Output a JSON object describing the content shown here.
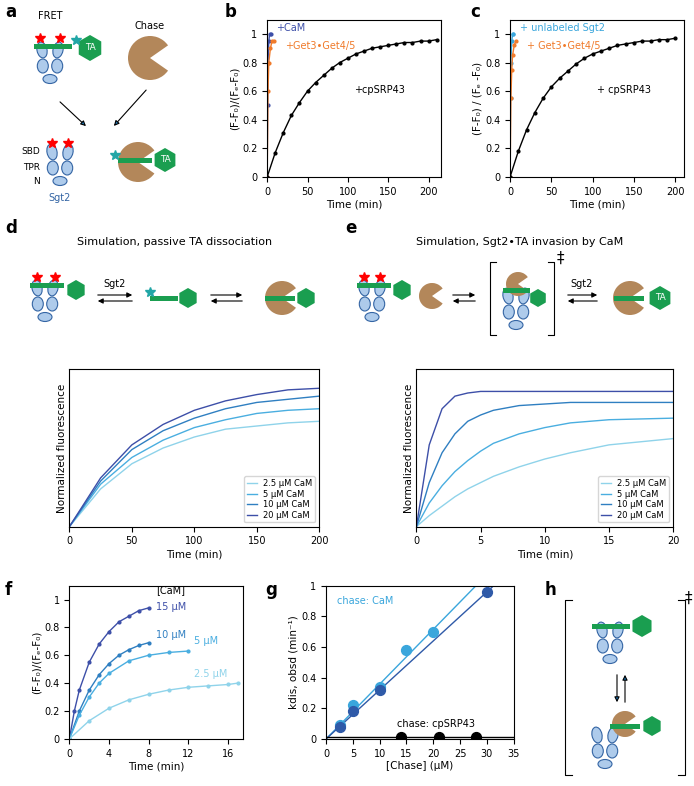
{
  "diagrams": {
    "a": {
      "label": "a",
      "fret": "FRET",
      "ta": "TA",
      "chase": "Chase",
      "sbd": "SBD",
      "tpr": "TPR",
      "n": "N",
      "sgt2": "Sgt2"
    },
    "d": {
      "label": "d",
      "sgt2": "Sgt2"
    },
    "e": {
      "label": "e",
      "sgt2": "Sgt2",
      "ta": "TA",
      "transition": "‡"
    },
    "h": {
      "label": "h",
      "transition": "‡"
    }
  },
  "chart_data": [
    {
      "panel": "b",
      "type": "line",
      "xlabel": "Time (min)",
      "ylabel": "(F-F₀)/(Fₑ-F₀)",
      "xlim": [
        0,
        215
      ],
      "xticks": [
        0,
        50,
        100,
        150,
        200
      ],
      "ylim": [
        0,
        1.1
      ],
      "yticks": [
        0,
        0.2,
        0.4,
        0.6,
        0.8,
        1
      ],
      "series": [
        {
          "name": "+CaM",
          "color": "#3d4fa8",
          "marker": "o",
          "x": [
            0,
            0.5,
            1,
            2,
            3,
            5
          ],
          "values": [
            0,
            0.5,
            0.8,
            0.95,
            1.0,
            1.0
          ]
        },
        {
          "name": "+Get3•Get4/5",
          "color": "#f07a2a",
          "marker": "o",
          "x": [
            0,
            1,
            2,
            4,
            6,
            8
          ],
          "values": [
            0,
            0.6,
            0.8,
            0.9,
            0.95,
            0.95
          ]
        },
        {
          "name": "+cpSRP43",
          "color": "#000000",
          "marker": "o",
          "x": [
            0,
            10,
            20,
            30,
            40,
            50,
            60,
            70,
            80,
            90,
            100,
            110,
            120,
            130,
            140,
            150,
            160,
            170,
            180,
            190,
            200,
            210
          ],
          "values": [
            0,
            0.17,
            0.31,
            0.43,
            0.52,
            0.6,
            0.66,
            0.71,
            0.76,
            0.8,
            0.83,
            0.86,
            0.88,
            0.9,
            0.91,
            0.92,
            0.93,
            0.94,
            0.94,
            0.95,
            0.95,
            0.96
          ]
        }
      ]
    },
    {
      "panel": "c",
      "type": "line",
      "xlabel": "Time (min)",
      "ylabel": "(F-F₀) / (Fₑ -F₀)",
      "xlim": [
        0,
        210
      ],
      "xticks": [
        0,
        50,
        100,
        150,
        200
      ],
      "ylim": [
        0,
        1.1
      ],
      "yticks": [
        0,
        0.2,
        0.4,
        0.6,
        0.8,
        1
      ],
      "series": [
        {
          "name": "+ unlabeled Sgt2",
          "color": "#3aa6dc",
          "marker": "o",
          "x": [
            0,
            0.5,
            1,
            2,
            3,
            4
          ],
          "values": [
            0,
            0.55,
            0.8,
            0.95,
            1.0,
            1.0
          ]
        },
        {
          "name": "+ Get3•Get4/5",
          "color": "#f07a2a",
          "marker": "o",
          "x": [
            0,
            1,
            2,
            3,
            5,
            7
          ],
          "values": [
            0,
            0.55,
            0.75,
            0.85,
            0.92,
            0.95
          ]
        },
        {
          "name": "+ cpSRP43",
          "color": "#000000",
          "marker": "o",
          "x": [
            0,
            10,
            20,
            30,
            40,
            50,
            60,
            70,
            80,
            90,
            100,
            110,
            120,
            130,
            140,
            150,
            160,
            170,
            180,
            190,
            200
          ],
          "values": [
            0,
            0.18,
            0.33,
            0.45,
            0.55,
            0.63,
            0.69,
            0.74,
            0.79,
            0.83,
            0.86,
            0.88,
            0.9,
            0.92,
            0.93,
            0.94,
            0.95,
            0.95,
            0.96,
            0.96,
            0.97
          ]
        }
      ]
    },
    {
      "panel": "d",
      "type": "line",
      "title": "Simulation, passive TA dissociation",
      "xlabel": "Time (min)",
      "ylabel": "Normalized fluorescence",
      "xlim": [
        0,
        200
      ],
      "xticks": [
        0,
        50,
        100,
        150,
        200
      ],
      "ylim": [
        0,
        1
      ],
      "tick_labels": "x",
      "legend": "lower right",
      "series": [
        {
          "name": "2.5 µM CaM",
          "color": "#8fd3ea",
          "x": [
            0,
            25,
            50,
            75,
            100,
            125,
            150,
            175,
            200
          ],
          "values": [
            0,
            0.24,
            0.4,
            0.5,
            0.57,
            0.62,
            0.64,
            0.66,
            0.67
          ]
        },
        {
          "name": "5 µM CaM",
          "color": "#4aaee0",
          "x": [
            0,
            25,
            50,
            75,
            100,
            125,
            150,
            175,
            200
          ],
          "values": [
            0,
            0.27,
            0.44,
            0.55,
            0.63,
            0.68,
            0.72,
            0.74,
            0.75
          ]
        },
        {
          "name": "10 µM CaM",
          "color": "#2f7fc1",
          "x": [
            0,
            25,
            50,
            75,
            100,
            125,
            150,
            175,
            200
          ],
          "values": [
            0,
            0.29,
            0.49,
            0.61,
            0.69,
            0.75,
            0.79,
            0.81,
            0.83
          ]
        },
        {
          "name": "20 µM CaM",
          "color": "#3d4fa8",
          "x": [
            0,
            25,
            50,
            75,
            100,
            125,
            150,
            175,
            200
          ],
          "values": [
            0,
            0.31,
            0.52,
            0.65,
            0.74,
            0.8,
            0.84,
            0.87,
            0.88
          ]
        }
      ]
    },
    {
      "panel": "e",
      "type": "line",
      "title": "Simulation, Sgt2•TA invasion by CaM",
      "xlabel": "Time (min)",
      "ylabel": "Normalized fluorescence",
      "xlim": [
        0,
        20
      ],
      "xticks": [
        0,
        5,
        10,
        15,
        20
      ],
      "ylim": [
        0,
        1
      ],
      "tick_labels": "x",
      "legend": "lower right",
      "series": [
        {
          "name": "2.5 µM CaM",
          "color": "#8fd3ea",
          "x": [
            0,
            1,
            2,
            3,
            4,
            5,
            6,
            8,
            10,
            12,
            15,
            20
          ],
          "values": [
            0,
            0.07,
            0.13,
            0.19,
            0.24,
            0.28,
            0.32,
            0.38,
            0.43,
            0.47,
            0.52,
            0.56
          ]
        },
        {
          "name": "5 µM CaM",
          "color": "#4aaee0",
          "x": [
            0,
            1,
            2,
            3,
            4,
            5,
            6,
            8,
            10,
            12,
            15,
            20
          ],
          "values": [
            0,
            0.15,
            0.26,
            0.35,
            0.42,
            0.48,
            0.53,
            0.59,
            0.63,
            0.66,
            0.68,
            0.69
          ]
        },
        {
          "name": "10 µM CaM",
          "color": "#2f7fc1",
          "x": [
            0,
            1,
            2,
            3,
            4,
            5,
            6,
            8,
            10,
            12,
            15,
            20
          ],
          "values": [
            0,
            0.28,
            0.47,
            0.59,
            0.67,
            0.71,
            0.74,
            0.77,
            0.78,
            0.79,
            0.79,
            0.79
          ]
        },
        {
          "name": "20 µM CaM",
          "color": "#3d4fa8",
          "x": [
            0,
            1,
            2,
            3,
            4,
            5,
            6,
            8,
            10,
            12,
            15,
            20
          ],
          "values": [
            0,
            0.52,
            0.75,
            0.83,
            0.85,
            0.86,
            0.86,
            0.86,
            0.86,
            0.86,
            0.86,
            0.86
          ]
        }
      ]
    },
    {
      "panel": "f",
      "type": "line",
      "xlabel": "Time (min)",
      "ylabel": "(F-F₀)/(Fₑ-F₀)",
      "annotations": [
        "[CaM]"
      ],
      "xlim": [
        0,
        17.5
      ],
      "xticks": [
        0,
        4,
        8,
        12,
        16
      ],
      "ylim": [
        0,
        1.1
      ],
      "yticks": [
        0,
        0.2,
        0.4,
        0.6,
        0.8,
        1
      ],
      "series": [
        {
          "name": "15 µM",
          "color": "#3d4fa8",
          "marker": "o",
          "x": [
            0,
            0.5,
            1,
            2,
            3,
            4,
            5,
            6,
            7,
            8
          ],
          "values": [
            0,
            0.2,
            0.35,
            0.55,
            0.68,
            0.77,
            0.84,
            0.88,
            0.92,
            0.94
          ]
        },
        {
          "name": "10 µM",
          "color": "#2f7fc1",
          "marker": "o",
          "x": [
            0,
            1,
            2,
            3,
            4,
            5,
            6,
            7,
            8
          ],
          "values": [
            0,
            0.2,
            0.35,
            0.46,
            0.54,
            0.6,
            0.64,
            0.67,
            0.69
          ]
        },
        {
          "name": "5 µM",
          "color": "#4aaee0",
          "marker": "o",
          "x": [
            0,
            1,
            2,
            3,
            4,
            6,
            8,
            10,
            12
          ],
          "values": [
            0,
            0.17,
            0.3,
            0.4,
            0.47,
            0.56,
            0.6,
            0.62,
            0.63
          ]
        },
        {
          "name": "2.5 µM",
          "color": "#8fd3ea",
          "marker": "o",
          "x": [
            0,
            2,
            4,
            6,
            8,
            10,
            12,
            14,
            16,
            17
          ],
          "values": [
            0,
            0.13,
            0.22,
            0.28,
            0.32,
            0.35,
            0.37,
            0.38,
            0.39,
            0.4
          ]
        }
      ]
    },
    {
      "panel": "g",
      "type": "scatter",
      "xlabel": "[Chase] (µM)",
      "ylabel": "kdis, obsd (min⁻¹)",
      "xlim": [
        0,
        35
      ],
      "xticks": [
        0,
        5,
        10,
        15,
        20,
        25,
        30,
        35
      ],
      "ylim": [
        0,
        1
      ],
      "yticks": [
        0,
        0.2,
        0.4,
        0.6,
        0.8,
        1
      ],
      "series": [
        {
          "name": "chase: CaM",
          "color": "#3aa6dc",
          "marker": "o",
          "x": [
            2.5,
            5,
            10,
            15,
            20
          ],
          "values": [
            0.09,
            0.22,
            0.34,
            0.58,
            0.7
          ]
        },
        {
          "color": "#2f5aa8",
          "marker": "o",
          "x": [
            2.5,
            5,
            10,
            30
          ],
          "values": [
            0.08,
            0.18,
            0.32,
            0.96
          ]
        },
        {
          "name": "chase: cpSRP43",
          "color": "#000000",
          "marker": "o",
          "x": [
            14,
            21,
            28
          ],
          "values": [
            0.01,
            0.01,
            0.01
          ]
        },
        {
          "type": "line",
          "color": "#3aa6dc",
          "x": [
            0,
            28
          ],
          "values": [
            0,
            1.0
          ]
        },
        {
          "type": "line",
          "color": "#2f5aa8",
          "x": [
            0,
            31
          ],
          "values": [
            0,
            0.99
          ]
        },
        {
          "type": "line",
          "color": "#000000",
          "x": [
            0,
            35
          ],
          "values": [
            0.01,
            0.01
          ]
        }
      ]
    }
  ]
}
